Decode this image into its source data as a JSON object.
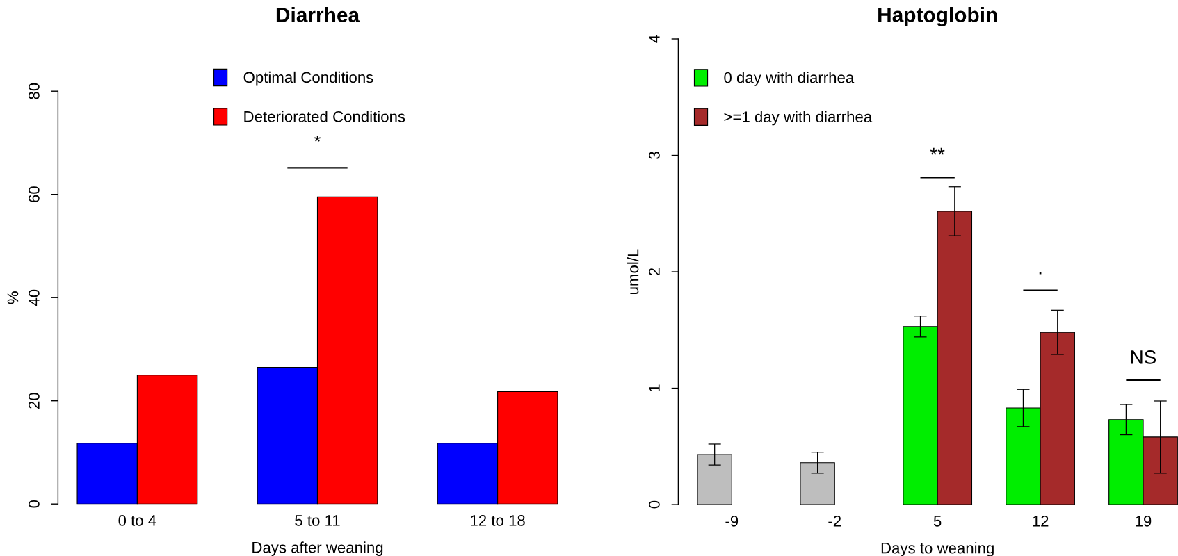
{
  "chart_data": [
    {
      "type": "bar",
      "title": "Diarrhea",
      "xlabel": "Days after weaning",
      "ylabel": "%",
      "categories": [
        "0 to 4",
        "5 to 11",
        "12 to 18"
      ],
      "series": [
        {
          "name": "Optimal Conditions",
          "color": "#0000ff",
          "values": [
            11.8,
            26.5,
            11.8
          ]
        },
        {
          "name": "Deteriorated Conditions",
          "color": "#ff0000",
          "values": [
            25,
            59.5,
            21.8
          ]
        }
      ],
      "ylim": [
        0,
        80
      ],
      "yticks": [
        0,
        20,
        40,
        60,
        80
      ],
      "legend": "top",
      "annotations": [
        "*"
      ]
    },
    {
      "type": "bar",
      "title": "Haptoglobin",
      "xlabel": "Days to weaning",
      "ylabel": "umol/L",
      "categories": [
        "-9",
        "-2",
        "5",
        "12",
        "19"
      ],
      "series": [
        {
          "name": "0 day with diarrhea",
          "color": "#00ee00",
          "colors": [
            "#bebebe",
            "#bebebe",
            "#00ee00",
            "#00ee00",
            "#00ee00"
          ],
          "values": [
            0.43,
            0.36,
            1.53,
            0.83,
            0.73
          ],
          "errors": [
            0.09,
            0.09,
            0.09,
            0.16,
            0.13
          ]
        },
        {
          "name": ">=1 day with diarrhea",
          "color": "#a52a2a",
          "values": [
            null,
            null,
            2.52,
            1.48,
            0.58
          ],
          "errors": [
            null,
            null,
            0.21,
            0.19,
            0.31
          ]
        }
      ],
      "ylim": [
        0,
        4
      ],
      "yticks": [
        0,
        1,
        2,
        3,
        4
      ],
      "legend": "top left",
      "annotations": [
        "**",
        ".",
        "NS"
      ]
    }
  ]
}
